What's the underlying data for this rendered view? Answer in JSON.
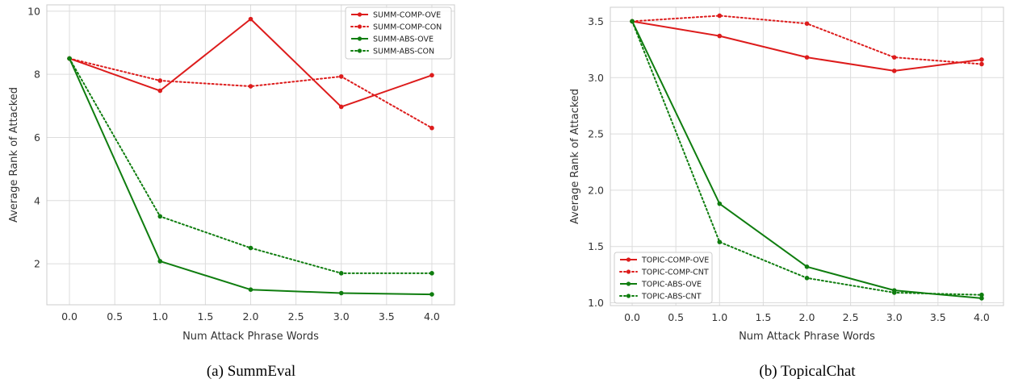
{
  "chart_data": [
    {
      "type": "line",
      "caption": "(a) SummEval",
      "xlabel": "Num Attack Phrase Words",
      "ylabel": "Average Rank of Attacked",
      "x": [
        0.0,
        1.0,
        2.0,
        3.0,
        4.0
      ],
      "xlim": [
        -0.25,
        4.25
      ],
      "ylim": [
        0.7,
        10.2
      ],
      "xticks": [
        0.0,
        0.5,
        1.0,
        1.5,
        2.0,
        2.5,
        3.0,
        3.5,
        4.0
      ],
      "xtick_labels": [
        "0.0",
        "0.5",
        "1.0",
        "1.5",
        "2.0",
        "2.5",
        "3.0",
        "3.5",
        "4.0"
      ],
      "yticks": [
        2,
        4,
        6,
        8,
        10
      ],
      "ytick_labels": [
        "2",
        "4",
        "6",
        "8",
        "10"
      ],
      "legend_position": "top-right",
      "series": [
        {
          "name": "SUMM-COMP-OVE",
          "color": "#dd1c1c",
          "dash": "solid",
          "values": [
            8.5,
            7.48,
            9.75,
            6.97,
            7.97
          ]
        },
        {
          "name": "SUMM-COMP-CON",
          "color": "#dd1c1c",
          "dash": "dotted",
          "values": [
            8.5,
            7.8,
            7.62,
            7.93,
            6.3
          ]
        },
        {
          "name": "SUMM-ABS-OVE",
          "color": "#0f7d0f",
          "dash": "solid",
          "values": [
            8.5,
            2.08,
            1.18,
            1.07,
            1.03
          ]
        },
        {
          "name": "SUMM-ABS-CON",
          "color": "#0f7d0f",
          "dash": "dotted",
          "values": [
            8.5,
            3.5,
            2.5,
            1.7,
            1.7
          ]
        }
      ]
    },
    {
      "type": "line",
      "caption": "(b) TopicalChat",
      "xlabel": "Num Attack Phrase Words",
      "ylabel": "Average Rank of Attacked",
      "x": [
        0.0,
        1.0,
        2.0,
        3.0,
        4.0
      ],
      "xlim": [
        -0.25,
        4.25
      ],
      "ylim": [
        0.975,
        3.625
      ],
      "xticks": [
        0.0,
        0.5,
        1.0,
        1.5,
        2.0,
        2.5,
        3.0,
        3.5,
        4.0
      ],
      "xtick_labels": [
        "0.0",
        "0.5",
        "1.0",
        "1.5",
        "2.0",
        "2.5",
        "3.0",
        "3.5",
        "4.0"
      ],
      "yticks": [
        1.0,
        1.5,
        2.0,
        2.5,
        3.0,
        3.5
      ],
      "ytick_labels": [
        "1.0",
        "1.5",
        "2.0",
        "2.5",
        "3.0",
        "3.5"
      ],
      "legend_position": "bottom-left",
      "series": [
        {
          "name": "TOPIC-COMP-OVE",
          "color": "#dd1c1c",
          "dash": "solid",
          "values": [
            3.5,
            3.37,
            3.18,
            3.06,
            3.16
          ]
        },
        {
          "name": "TOPIC-COMP-CNT",
          "color": "#dd1c1c",
          "dash": "dotted",
          "values": [
            3.5,
            3.55,
            3.48,
            3.18,
            3.12
          ]
        },
        {
          "name": "TOPIC-ABS-OVE",
          "color": "#0f7d0f",
          "dash": "solid",
          "values": [
            3.5,
            1.88,
            1.32,
            1.11,
            1.04
          ]
        },
        {
          "name": "TOPIC-ABS-CNT",
          "color": "#0f7d0f",
          "dash": "dotted",
          "values": [
            3.5,
            1.54,
            1.22,
            1.09,
            1.07
          ]
        }
      ]
    }
  ]
}
